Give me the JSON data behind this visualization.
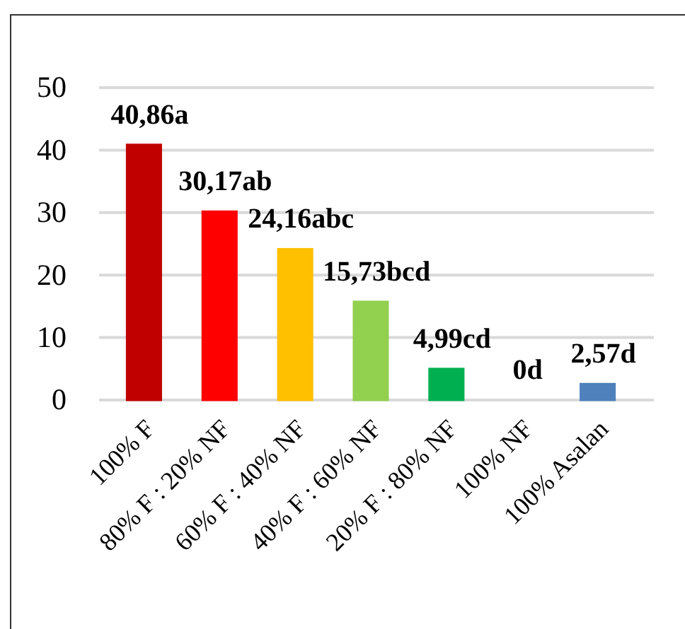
{
  "chart_data": {
    "type": "bar",
    "categories": [
      "100% F",
      "80% F : 20% NF",
      "60% F : 40% NF",
      "40% F : 60% NF",
      "20% F : 80% NF",
      "100% NF",
      "100% Asalan"
    ],
    "values": [
      40.86,
      30.17,
      24.16,
      15.73,
      4.99,
      0,
      2.57
    ],
    "colors": [
      "#c00000",
      "#ff0000",
      "#ffc000",
      "#92d050",
      "#00b050",
      "#1d9bd1",
      "#4f81bd"
    ],
    "value_labels": [
      "40,86a",
      "30,17ab",
      "24,16abc",
      "15,73bcd",
      "4,99cd",
      "0d",
      "2,57d"
    ],
    "ylim": [
      0,
      50
    ],
    "yticks": [
      0,
      10,
      20,
      30,
      40,
      50
    ],
    "grid": "y"
  }
}
